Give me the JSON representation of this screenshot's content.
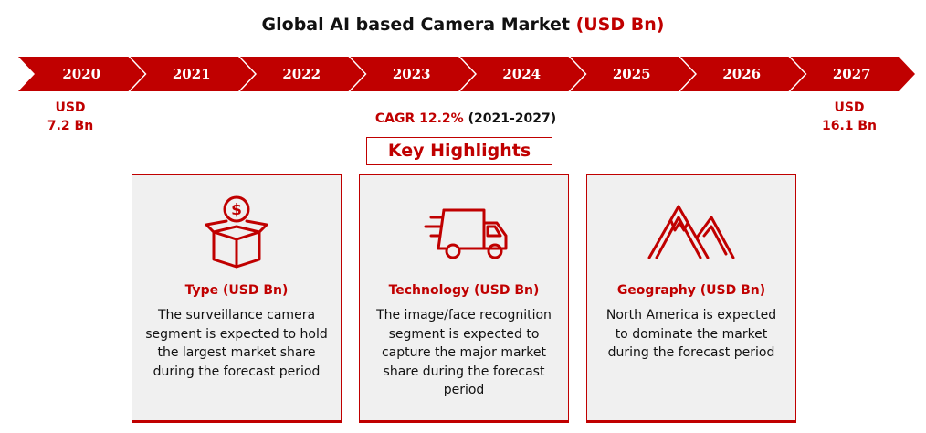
{
  "title": {
    "main": "Global AI based Camera Market",
    "unit": "(USD Bn)"
  },
  "timeline": {
    "years": [
      "2020",
      "2021",
      "2022",
      "2023",
      "2024",
      "2025",
      "2026",
      "2027"
    ],
    "start": {
      "currency": "USD",
      "value": "7.2 Bn"
    },
    "end": {
      "currency": "USD",
      "value": "16.1 Bn"
    },
    "cagr_value": "CAGR 12.2%",
    "cagr_period": "(2021-2027)",
    "color": "#c00000"
  },
  "key_highlights": "Key Highlights",
  "cards": [
    {
      "icon": "money-box-icon",
      "title": "Type (USD Bn)",
      "text": "The surveillance camera segment is expected to hold the largest market share during the forecast period"
    },
    {
      "icon": "delivery-truck-icon",
      "title": "Technology (USD Bn)",
      "text": "The image/face recognition segment is expected to capture the major market share during the forecast period"
    },
    {
      "icon": "mountain-icon",
      "title": "Geography (USD Bn)",
      "text": "North America is expected to dominate the market during the forecast period"
    }
  ]
}
